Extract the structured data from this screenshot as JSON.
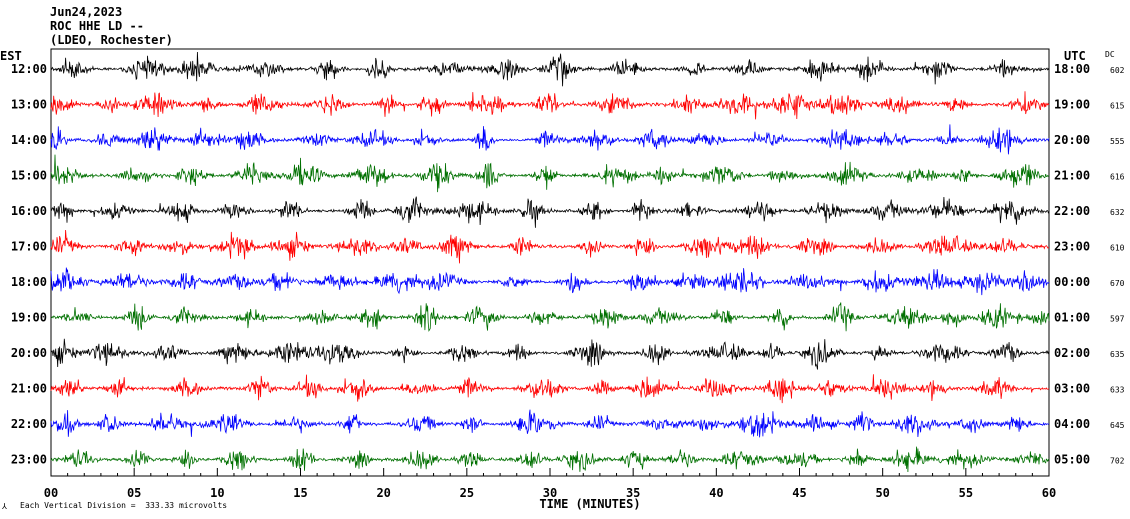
{
  "header": {
    "date": "Jun24,2023",
    "station": "ROC HHE LD --",
    "network": "(LDEO, Rochester)"
  },
  "footer": {
    "scale_note": "Each Vertical Division =  333.33 microvolts"
  },
  "chart_data": {
    "type": "line",
    "title": "",
    "xlabel": "TIME (MINUTES)",
    "x_ticks": [
      "00",
      "05",
      "10",
      "15",
      "20",
      "25",
      "30",
      "35",
      "40",
      "45",
      "50",
      "55",
      "60"
    ],
    "xlim": [
      0,
      60
    ],
    "left_axis_label": "EST",
    "right_axis_label": "UTC",
    "dc_label": "DC",
    "trace_colors": [
      "#000000",
      "#ff0000",
      "#0000ff",
      "#007000"
    ],
    "rows": [
      {
        "est": "12:00",
        "utc": "18:00",
        "dc": "602"
      },
      {
        "est": "13:00",
        "utc": "19:00",
        "dc": "615"
      },
      {
        "est": "14:00",
        "utc": "20:00",
        "dc": "555"
      },
      {
        "est": "15:00",
        "utc": "21:00",
        "dc": "616"
      },
      {
        "est": "16:00",
        "utc": "22:00",
        "dc": "632"
      },
      {
        "est": "17:00",
        "utc": "23:00",
        "dc": "610"
      },
      {
        "est": "18:00",
        "utc": "00:00",
        "dc": "670"
      },
      {
        "est": "19:00",
        "utc": "01:00",
        "dc": "597"
      },
      {
        "est": "20:00",
        "utc": "02:00",
        "dc": "635"
      },
      {
        "est": "21:00",
        "utc": "03:00",
        "dc": "633"
      },
      {
        "est": "22:00",
        "utc": "04:00",
        "dc": "645"
      },
      {
        "est": "23:00",
        "utc": "05:00",
        "dc": "702"
      }
    ]
  }
}
